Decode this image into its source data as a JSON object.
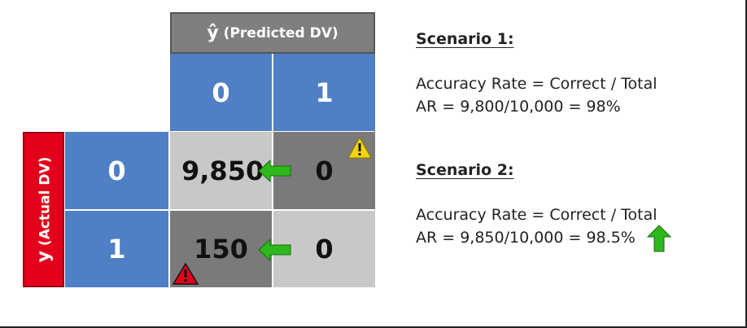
{
  "matrix": {
    "predicted_header": {
      "symbol": "ŷ",
      "label": "(Predicted DV)"
    },
    "actual_header": {
      "symbol": "y",
      "label": "(Actual DV)"
    },
    "col_labels": [
      "0",
      "1"
    ],
    "row_labels": [
      "0",
      "1"
    ],
    "cells": [
      [
        "9,850",
        "0"
      ],
      [
        "150",
        "0"
      ]
    ]
  },
  "icons": {
    "warning_yellow": "warning-icon",
    "warning_red": "warning-icon",
    "arrows_green": "arrow-left-icon",
    "up_arrow": "arrow-up-icon"
  },
  "colors": {
    "blue": "#4f7fc4",
    "red": "#e3001b",
    "green": "#2db81c",
    "yellow": "#f5d50a"
  },
  "scenario1": {
    "title": "Scenario 1:",
    "line1": "Accuracy Rate = Correct / Total",
    "line2": "AR = 9,800/10,000 = 98%"
  },
  "scenario2": {
    "title": "Scenario 2:",
    "line1": "Accuracy Rate = Correct / Total",
    "line2": "AR = 9,850/10,000 = 98.5%"
  }
}
